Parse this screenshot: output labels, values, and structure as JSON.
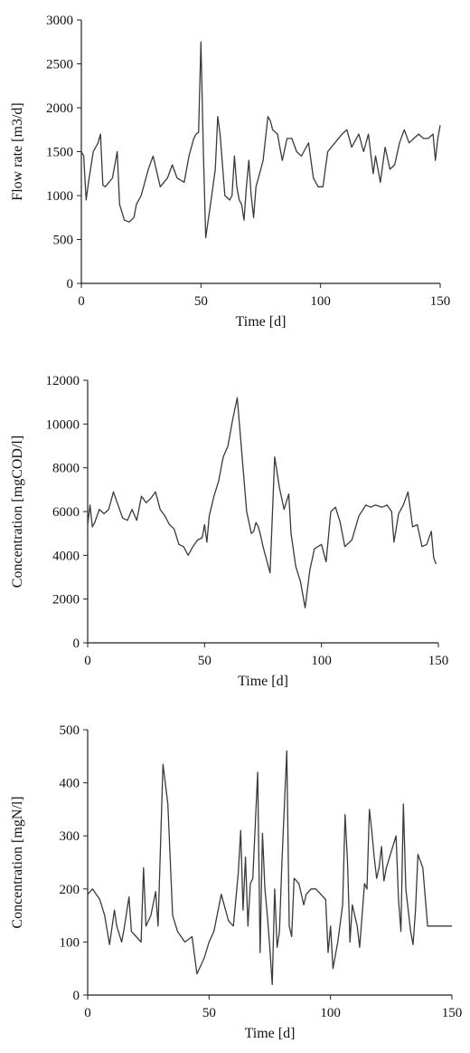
{
  "chart_data": [
    {
      "type": "line",
      "title": "",
      "xlabel": "Time [d]",
      "ylabel": "Flow rate [m3/d]",
      "xlim": [
        0,
        150
      ],
      "ylim": [
        0,
        3000
      ],
      "xticks": [
        "0",
        "50",
        "100",
        "150"
      ],
      "yticks": [
        "0",
        "500",
        "1000",
        "1500",
        "2000",
        "2500",
        "3000"
      ],
      "grid": false,
      "color": "#3a3a3a",
      "series": [
        {
          "x": [
            0,
            1,
            2,
            3,
            5,
            7,
            8,
            9,
            10,
            13,
            15,
            16,
            18,
            20,
            22,
            23,
            25,
            28,
            30,
            33,
            36,
            38,
            40,
            43,
            45,
            47,
            48,
            49,
            50,
            51,
            52,
            54,
            56,
            57,
            58,
            60,
            62,
            63,
            64,
            65,
            66,
            67,
            68,
            69,
            70,
            71,
            72,
            73,
            74,
            75,
            76,
            78,
            79,
            80,
            82,
            84,
            86,
            88,
            90,
            92,
            93,
            95,
            97,
            99,
            101,
            103,
            106,
            109,
            111,
            113,
            116,
            118,
            120,
            122,
            123,
            125,
            127,
            129,
            131,
            133,
            135,
            137,
            139,
            141,
            143,
            145,
            147,
            148,
            149,
            150
          ],
          "y": [
            1500,
            1450,
            950,
            1150,
            1500,
            1600,
            1700,
            1120,
            1100,
            1200,
            1500,
            900,
            720,
            700,
            750,
            900,
            1000,
            1300,
            1450,
            1100,
            1200,
            1350,
            1200,
            1150,
            1450,
            1650,
            1700,
            1720,
            2750,
            1500,
            520,
            900,
            1300,
            1900,
            1700,
            1000,
            950,
            1000,
            1450,
            1100,
            950,
            900,
            720,
            1100,
            1400,
            1000,
            750,
            1100,
            1200,
            1300,
            1400,
            1900,
            1850,
            1750,
            1700,
            1400,
            1650,
            1650,
            1500,
            1450,
            1500,
            1600,
            1200,
            1100,
            1100,
            1500,
            1600,
            1700,
            1750,
            1550,
            1700,
            1500,
            1700,
            1250,
            1450,
            1150,
            1550,
            1300,
            1350,
            1600,
            1750,
            1600,
            1650,
            1700,
            1650,
            1650,
            1700,
            1400,
            1650,
            1800
          ]
        }
      ]
    },
    {
      "type": "line",
      "title": "",
      "xlabel": "Time [d]",
      "ylabel": "Concentration [mgCOD/l]",
      "xlim": [
        0,
        150
      ],
      "ylim": [
        0,
        12000
      ],
      "xticks": [
        "0",
        "50",
        "100",
        "150"
      ],
      "yticks": [
        "0",
        "2000",
        "4000",
        "6000",
        "8000",
        "10000",
        "12000"
      ],
      "grid": false,
      "color": "#3a3a3a",
      "series": [
        {
          "x": [
            0,
            1,
            2,
            3,
            5,
            7,
            9,
            11,
            13,
            15,
            17,
            19,
            21,
            23,
            25,
            27,
            29,
            31,
            33,
            35,
            37,
            39,
            41,
            43,
            45,
            47,
            49,
            50,
            51,
            52,
            54,
            56,
            58,
            60,
            62,
            64,
            66,
            68,
            70,
            71,
            72,
            73,
            74,
            75,
            76,
            78,
            80,
            82,
            84,
            86,
            87,
            89,
            91,
            93,
            95,
            97,
            100,
            102,
            104,
            106,
            108,
            110,
            113,
            116,
            119,
            121,
            123,
            126,
            128,
            130,
            131,
            133,
            135,
            137,
            139,
            141,
            143,
            145,
            147,
            148,
            149
          ],
          "y": [
            5400,
            6300,
            5300,
            5500,
            6100,
            5900,
            6100,
            6900,
            6300,
            5700,
            5600,
            6100,
            5600,
            6700,
            6400,
            6600,
            6900,
            6100,
            5800,
            5400,
            5200,
            4500,
            4400,
            4000,
            4400,
            4700,
            4800,
            5400,
            4600,
            5800,
            6700,
            7400,
            8500,
            9000,
            10200,
            11200,
            8600,
            6000,
            5000,
            5100,
            5500,
            5300,
            4900,
            4400,
            4000,
            3200,
            8500,
            7100,
            6100,
            6800,
            5000,
            3500,
            2800,
            1600,
            3300,
            4300,
            4500,
            3700,
            6000,
            6200,
            5500,
            4400,
            4700,
            5800,
            6300,
            6200,
            6300,
            6200,
            6300,
            6000,
            4600,
            5900,
            6300,
            6900,
            5300,
            5400,
            4400,
            4500,
            5100,
            3900,
            3600
          ]
        }
      ]
    },
    {
      "type": "line",
      "title": "",
      "xlabel": "Time [d]",
      "ylabel": "Concentration [mgN/l]",
      "xlim": [
        0,
        150
      ],
      "ylim": [
        0,
        500
      ],
      "xticks": [
        "0",
        "50",
        "100",
        "150"
      ],
      "yticks": [
        "0",
        "100",
        "200",
        "300",
        "400",
        "500"
      ],
      "grid": false,
      "color": "#3a3a3a",
      "series": [
        {
          "x": [
            0,
            2,
            5,
            7,
            9,
            11,
            12,
            14,
            15,
            17,
            18,
            20,
            22,
            23,
            24,
            26,
            28,
            29,
            31,
            33,
            35,
            37,
            40,
            43,
            45,
            48,
            50,
            52,
            55,
            58,
            60,
            62,
            63,
            64,
            65,
            66,
            67,
            68,
            70,
            71,
            72,
            73,
            74,
            75,
            76,
            77,
            78,
            79,
            80,
            82,
            83,
            84,
            85,
            87,
            89,
            90,
            92,
            94,
            96,
            98,
            99,
            100,
            101,
            103,
            105,
            106,
            107,
            108,
            109,
            111,
            112,
            114,
            115,
            116,
            117,
            118,
            119,
            120,
            121,
            122,
            123,
            125,
            127,
            128,
            129,
            130,
            131,
            133,
            134,
            135,
            136,
            138,
            140,
            143,
            146,
            150
          ],
          "y": [
            190,
            200,
            180,
            150,
            95,
            160,
            130,
            100,
            125,
            185,
            120,
            110,
            100,
            240,
            130,
            150,
            195,
            130,
            435,
            360,
            150,
            120,
            100,
            110,
            40,
            70,
            100,
            120,
            190,
            140,
            130,
            230,
            310,
            160,
            260,
            130,
            210,
            220,
            420,
            80,
            305,
            200,
            150,
            90,
            20,
            200,
            90,
            120,
            250,
            460,
            130,
            110,
            220,
            210,
            170,
            190,
            200,
            200,
            190,
            180,
            80,
            130,
            50,
            100,
            170,
            340,
            250,
            100,
            170,
            130,
            90,
            210,
            200,
            350,
            310,
            260,
            220,
            240,
            280,
            215,
            240,
            270,
            300,
            180,
            120,
            360,
            200,
            120,
            95,
            160,
            265,
            240,
            130,
            130,
            130,
            130
          ]
        }
      ]
    }
  ]
}
